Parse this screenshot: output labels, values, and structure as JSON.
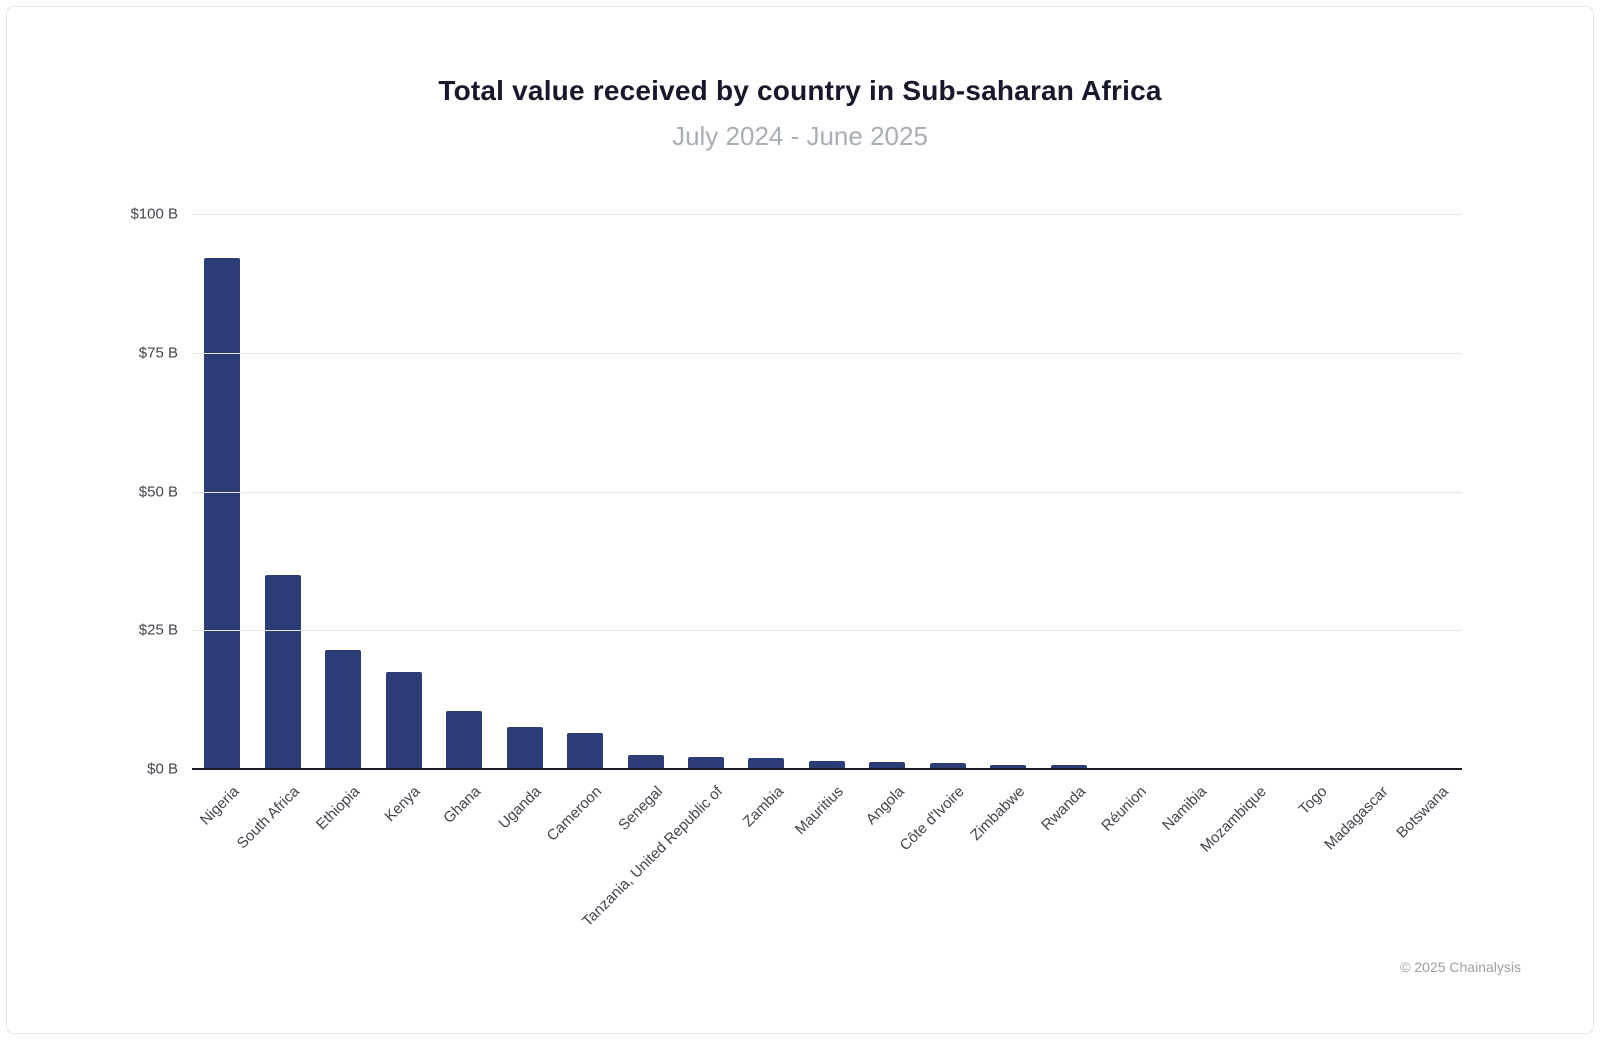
{
  "page": {
    "title": "Total value received by country in Sub-saharan Africa",
    "subtitle": "July 2024 - June 2025",
    "footer": "© 2025 Chainalysis"
  },
  "chart_data": {
    "type": "bar",
    "title": "Total value received by country in Sub-saharan Africa",
    "subtitle": "July 2024 - June 2025",
    "categories": [
      "Nigeria",
      "South Africa",
      "Ethiopia",
      "Kenya",
      "Ghana",
      "Uganda",
      "Cameroon",
      "Senegal",
      "Tanzania, United Republic of",
      "Zambia",
      "Mauritius",
      "Angola",
      "Côte d'Ivoire",
      "Zimbabwe",
      "Rwanda",
      "Réunion",
      "Namibia",
      "Mozambique",
      "Togo",
      "Madagascar",
      "Botswana"
    ],
    "values": [
      92,
      35,
      21.5,
      17.5,
      10.5,
      7.5,
      6.5,
      2.5,
      2.2,
      1.9,
      1.5,
      1.3,
      1.0,
      0.8,
      0.8,
      0.25,
      0.2,
      0.1,
      0.08,
      0.05,
      0.05
    ],
    "value_unit": "billion USD",
    "xlabel": "",
    "ylabel": "",
    "ylim": [
      0,
      100
    ],
    "yticks": [
      0,
      25,
      50,
      75,
      100
    ],
    "ytick_labels": [
      "$0 B",
      "$25 B",
      "$50 B",
      "$75 B",
      "$100 B"
    ],
    "bar_color": "#2b3c77",
    "grid": true,
    "legend": false
  }
}
